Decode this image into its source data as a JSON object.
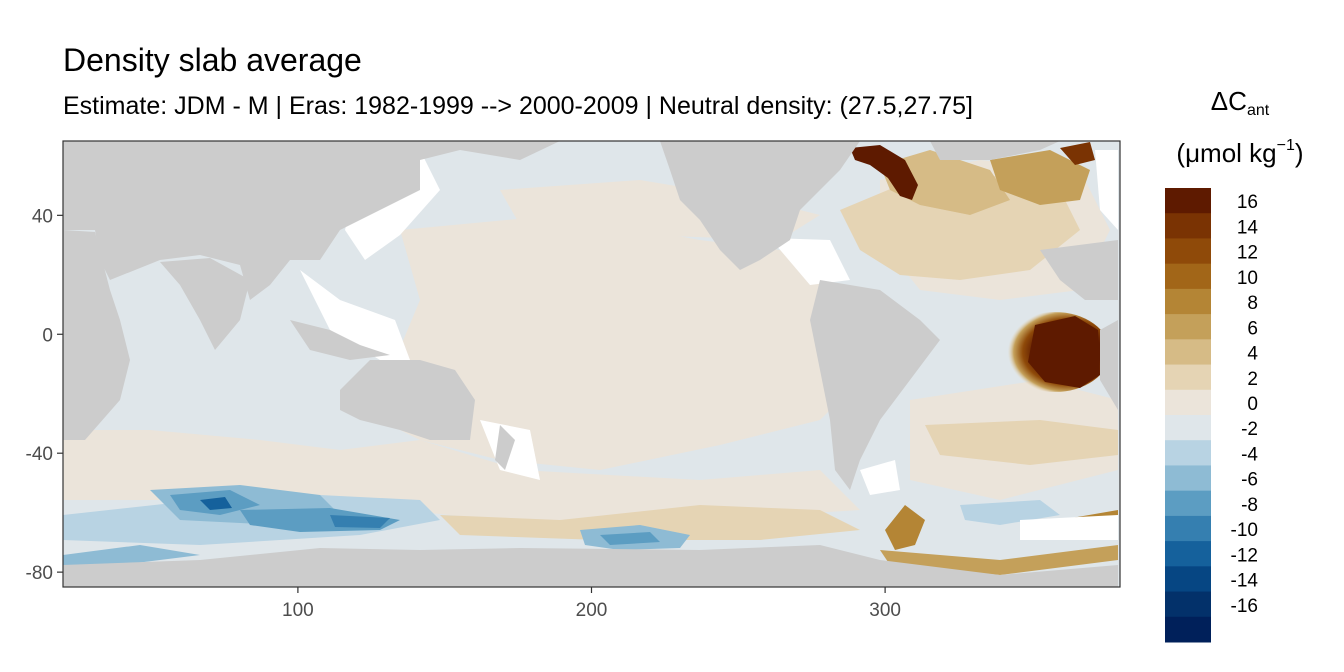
{
  "header": {
    "title": "Density slab average",
    "subtitle": "Estimate: JDM - M | Eras: 1982-1999 --> 2000-2009 | Neutral density: (27.5,27.75]"
  },
  "legend": {
    "title_main": "ΔC",
    "title_sub": "ant",
    "unit_open": "(μmol kg",
    "unit_sup": "−1",
    "unit_close": ")",
    "bins": [
      {
        "label": "16",
        "color": "#5e1a00"
      },
      {
        "label": "14",
        "color": "#7a3303"
      },
      {
        "label": "12",
        "color": "#8f4a09"
      },
      {
        "label": "10",
        "color": "#a26618"
      },
      {
        "label": "8",
        "color": "#b48535"
      },
      {
        "label": "6",
        "color": "#c4a05a"
      },
      {
        "label": "4",
        "color": "#d6bb86"
      },
      {
        "label": "2",
        "color": "#e5d4b4"
      },
      {
        "label": "0",
        "color": "#ebe4da"
      },
      {
        "label": "-2",
        "color": "#dfe6ea"
      },
      {
        "label": "-4",
        "color": "#b8d3e3"
      },
      {
        "label": "-6",
        "color": "#8ebbd4"
      },
      {
        "label": "-8",
        "color": "#5c9dc2"
      },
      {
        "label": "-10",
        "color": "#357fb0"
      },
      {
        "label": "-12",
        "color": "#15619c"
      },
      {
        "label": "-14",
        "color": "#064683"
      },
      {
        "label": "-16",
        "color": "#03316a"
      },
      {
        "label": "",
        "color": "#00205a"
      }
    ]
  },
  "map": {
    "x_ticks": [
      "100",
      "200",
      "300"
    ],
    "y_ticks": [
      "40",
      "0",
      "-40",
      "-80"
    ],
    "x_range": [
      20,
      380
    ],
    "y_range": [
      -85,
      65
    ],
    "land_color": "#cccccc",
    "missing_color": "#ffffff"
  }
}
